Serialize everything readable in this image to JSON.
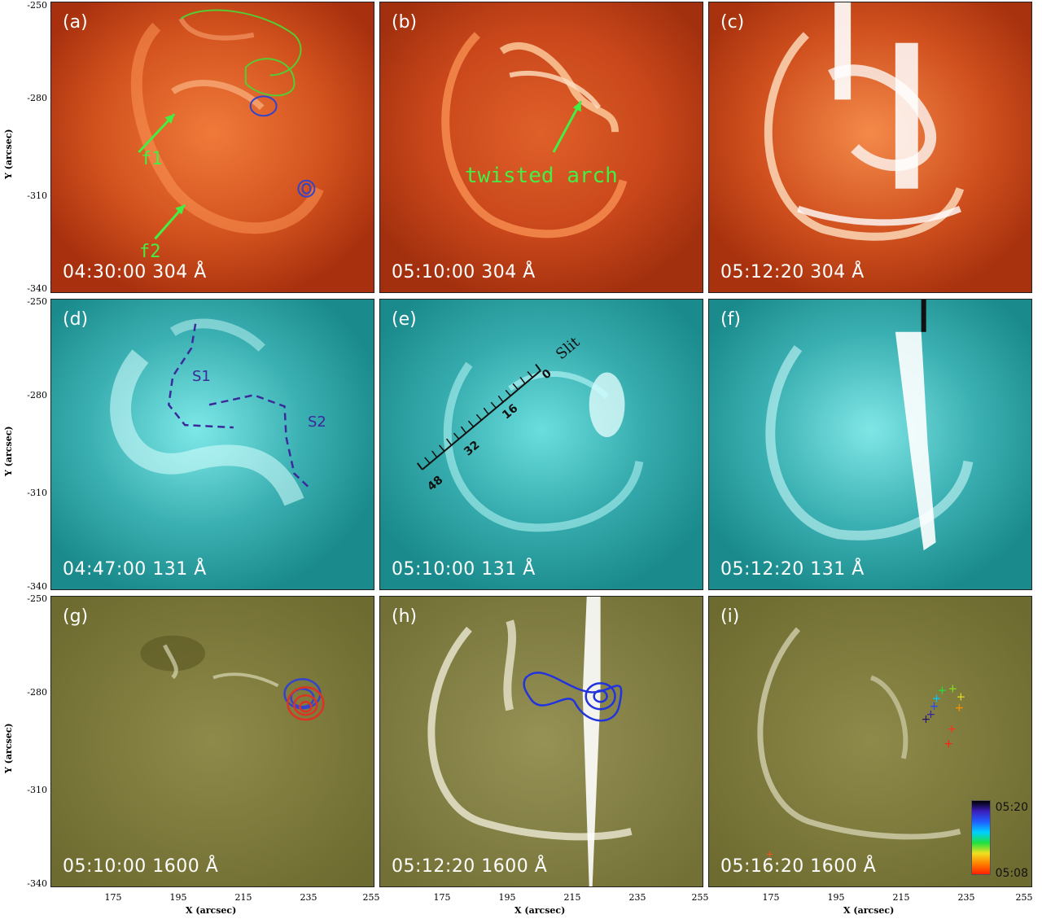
{
  "panels": [
    {
      "id": "a",
      "label": "(a)",
      "caption": "04:30:00 304 Å"
    },
    {
      "id": "b",
      "label": "(b)",
      "caption": "05:10:00 304 Å"
    },
    {
      "id": "c",
      "label": "(c)",
      "caption": "05:12:20 304 Å"
    },
    {
      "id": "d",
      "label": "(d)",
      "caption": "04:47:00 131 Å"
    },
    {
      "id": "e",
      "label": "(e)",
      "caption": "05:10:00 131 Å"
    },
    {
      "id": "f",
      "label": "(f)",
      "caption": "05:12:20 131 Å"
    },
    {
      "id": "g",
      "label": "(g)",
      "caption": "05:10:00 1600 Å"
    },
    {
      "id": "h",
      "label": "(h)",
      "caption": "05:12:20 1600 Å"
    },
    {
      "id": "i",
      "label": "(i)",
      "caption": "05:16:20 1600 Å"
    }
  ],
  "annotations": {
    "f1": "f1",
    "f2": "f2",
    "twisted_arch": "twisted arch",
    "s1": "S1",
    "s2": "S2",
    "slit": "Slit",
    "slit_ticks": [
      "0",
      "16",
      "32",
      "48"
    ],
    "colorbar_top": "05:20",
    "colorbar_bottom": "05:08"
  },
  "axes": {
    "y_title": "Y (arcsec)",
    "x_title": "X (arcsec)",
    "y_ticks": [
      "-250",
      "-280",
      "-310",
      "-340"
    ],
    "x_ticks": [
      "175",
      "195",
      "215",
      "235",
      "255"
    ]
  },
  "colors": {
    "row1_304": "#c8481a",
    "row2_131": "#2a9a9e",
    "row3_1600": "#7d7a3a",
    "contour_green": "#55cc33",
    "contour_blue": "#3344cc",
    "contour_red": "#dd3322",
    "annotation_green": "#44ee44",
    "annotation_purple": "#3a2a9a"
  }
}
